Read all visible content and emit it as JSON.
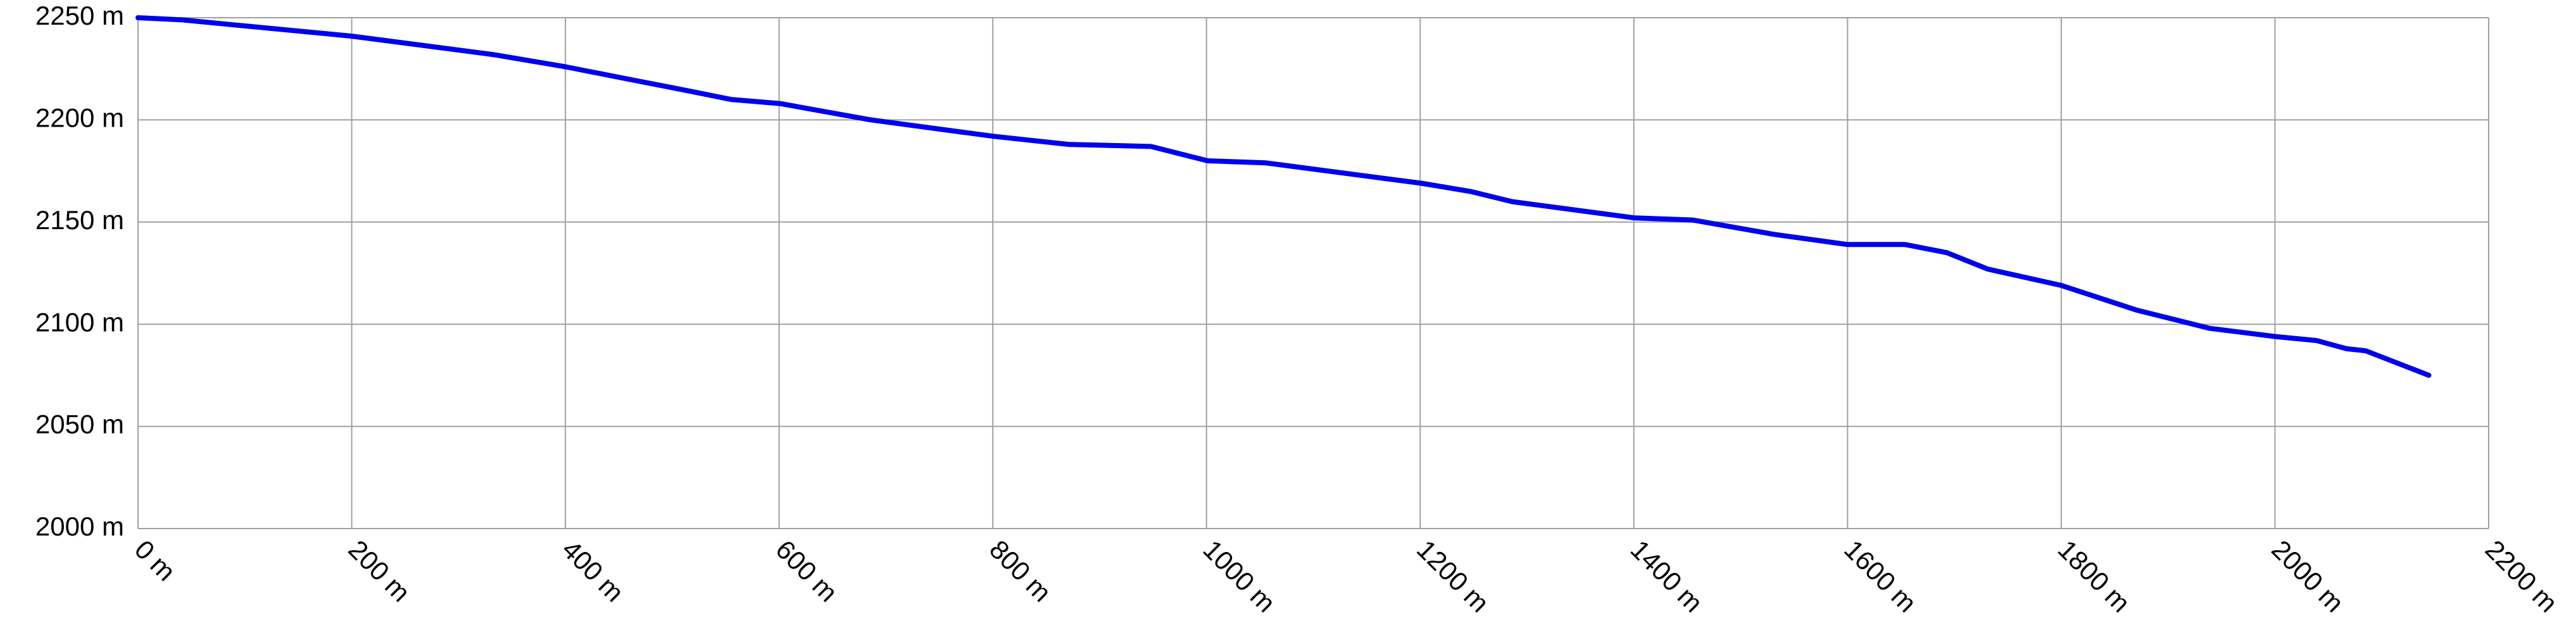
{
  "chart_data": {
    "type": "line",
    "color": "#0000ee",
    "grid": true,
    "x": [
      0,
      40,
      200,
      332,
      400,
      517,
      555,
      601,
      686,
      800,
      871,
      948,
      1001,
      1055,
      1201,
      1247,
      1286,
      1401,
      1455,
      1531,
      1600,
      1654,
      1693,
      1731,
      1800,
      1870,
      1939,
      2000,
      2039,
      2067,
      2085,
      2144
    ],
    "values": [
      2250,
      2249,
      2241,
      2232,
      2226,
      2214,
      2210,
      2208,
      2200,
      2192,
      2188,
      2187,
      2180,
      2179,
      2169,
      2165,
      2160,
      2152,
      2151,
      2144,
      2139,
      2139,
      2135,
      2127,
      2119,
      2107,
      2098,
      2094,
      2092,
      2088,
      2087,
      2075
    ],
    "xlim": [
      0,
      2200
    ],
    "xticks": [
      {
        "value": 0,
        "label": "0 m"
      },
      {
        "value": 200,
        "label": "200 m"
      },
      {
        "value": 400,
        "label": "400 m"
      },
      {
        "value": 600,
        "label": "600 m"
      },
      {
        "value": 800,
        "label": "800 m"
      },
      {
        "value": 1000,
        "label": "1000 m"
      },
      {
        "value": 1200,
        "label": "1200 m"
      },
      {
        "value": 1400,
        "label": "1400 m"
      },
      {
        "value": 1600,
        "label": "1600 m"
      },
      {
        "value": 1800,
        "label": "1800 m"
      },
      {
        "value": 2000,
        "label": "2000 m"
      },
      {
        "value": 2200,
        "label": "2200 m"
      }
    ],
    "ylim": [
      2000,
      2250
    ],
    "yticks": [
      {
        "value": 2000,
        "label": "2000 m"
      },
      {
        "value": 2050,
        "label": "2050 m"
      },
      {
        "value": 2100,
        "label": "2100 m"
      },
      {
        "value": 2150,
        "label": "2150 m"
      },
      {
        "value": 2200,
        "label": "2200 m"
      },
      {
        "value": 2250,
        "label": "2250 m"
      }
    ]
  }
}
